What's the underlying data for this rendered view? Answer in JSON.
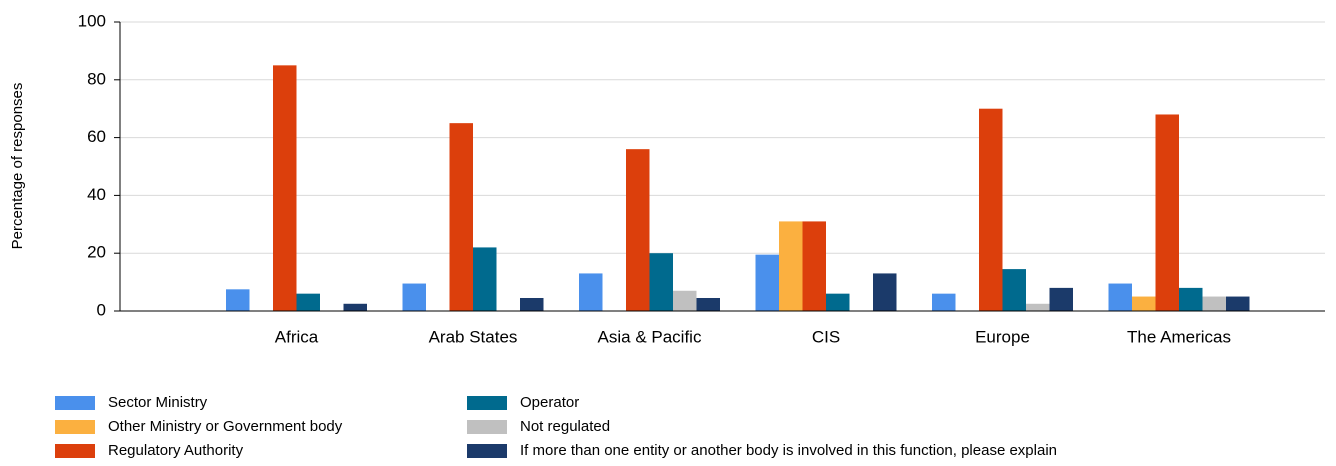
{
  "chart_data": {
    "type": "bar",
    "y_label": "Percentage of responses",
    "categories": [
      "Africa",
      "Arab States",
      "Asia & Pacific",
      "CIS",
      "Europe",
      "The Americas"
    ],
    "series": [
      {
        "name": "Sector Ministry",
        "color": "#4a90ec",
        "values": [
          7.5,
          9.5,
          13,
          19.5,
          6,
          9.5
        ]
      },
      {
        "name": "Other Ministry or Government body",
        "color": "#fbb040",
        "values": [
          0,
          0,
          0,
          31,
          0,
          5
        ]
      },
      {
        "name": "Regulatory Authority",
        "color": "#dc3f0c",
        "values": [
          85,
          65,
          56,
          31,
          70,
          68
        ]
      },
      {
        "name": "Operator",
        "color": "#006a8e",
        "values": [
          6,
          22,
          20,
          6,
          14.5,
          8
        ]
      },
      {
        "name": "Not regulated",
        "color": "#c0c0c0",
        "values": [
          0,
          0,
          7,
          0,
          2.5,
          5
        ]
      },
      {
        "name": "If more than one entity or another body is involved in this function, please explain",
        "color": "#1b3a6a",
        "values": [
          2.5,
          4.5,
          4.5,
          13,
          8,
          5
        ]
      }
    ],
    "ylim": [
      0,
      100
    ],
    "yticks": [
      0,
      20,
      40,
      60,
      80,
      100
    ],
    "grid": true
  }
}
